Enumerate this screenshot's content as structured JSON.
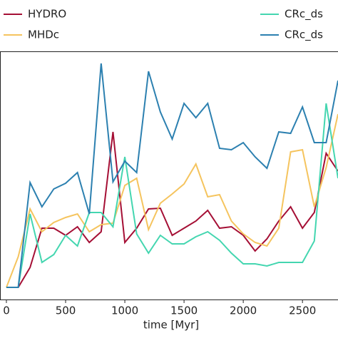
{
  "chart_data": {
    "type": "line",
    "x_label": "time [Myr]",
    "x": [
      0,
      100,
      200,
      300,
      400,
      500,
      600,
      700,
      800,
      900,
      1000,
      1100,
      1200,
      1300,
      1400,
      1500,
      1600,
      1700,
      1800,
      1900,
      2000,
      2100,
      2200,
      2300,
      2400,
      2500,
      2600,
      2700,
      2800
    ],
    "xlim": [
      -54,
      2800
    ],
    "xticks": [
      0,
      500,
      1000,
      1500,
      2000,
      2500
    ],
    "ylim": [
      -17,
      331
    ],
    "series": [
      {
        "name": "HYDRO",
        "color": "#a50f35",
        "values": [
          0,
          0,
          28,
          83,
          83,
          73,
          85,
          63,
          78,
          218,
          63,
          83,
          110,
          111,
          73,
          83,
          93,
          108,
          83,
          85,
          73,
          51,
          68,
          93,
          113,
          83,
          105,
          188,
          163
        ]
      },
      {
        "name": "MHDc",
        "color": "#f5c45e",
        "values": [
          0,
          43,
          110,
          78,
          91,
          98,
          103,
          78,
          88,
          90,
          143,
          153,
          81,
          118,
          131,
          145,
          173,
          127,
          130,
          93,
          75,
          63,
          58,
          83,
          190,
          193,
          113,
          168,
          243
        ]
      },
      {
        "name": "CRc_ds",
        "color": "#44d6b0",
        "values": [
          0,
          0,
          103,
          35,
          46,
          73,
          58,
          105,
          105,
          85,
          183,
          75,
          48,
          73,
          61,
          61,
          71,
          78,
          66,
          48,
          33,
          33,
          30,
          35,
          35,
          35,
          65,
          258,
          153
        ]
      },
      {
        "name": "CRc_ds",
        "color": "#2c80b0",
        "values": [
          0,
          0,
          147,
          113,
          138,
          146,
          161,
          103,
          314,
          148,
          177,
          161,
          303,
          246,
          208,
          258,
          238,
          258,
          195,
          193,
          203,
          183,
          167,
          218,
          216,
          253,
          203,
          203,
          290
        ]
      }
    ]
  }
}
